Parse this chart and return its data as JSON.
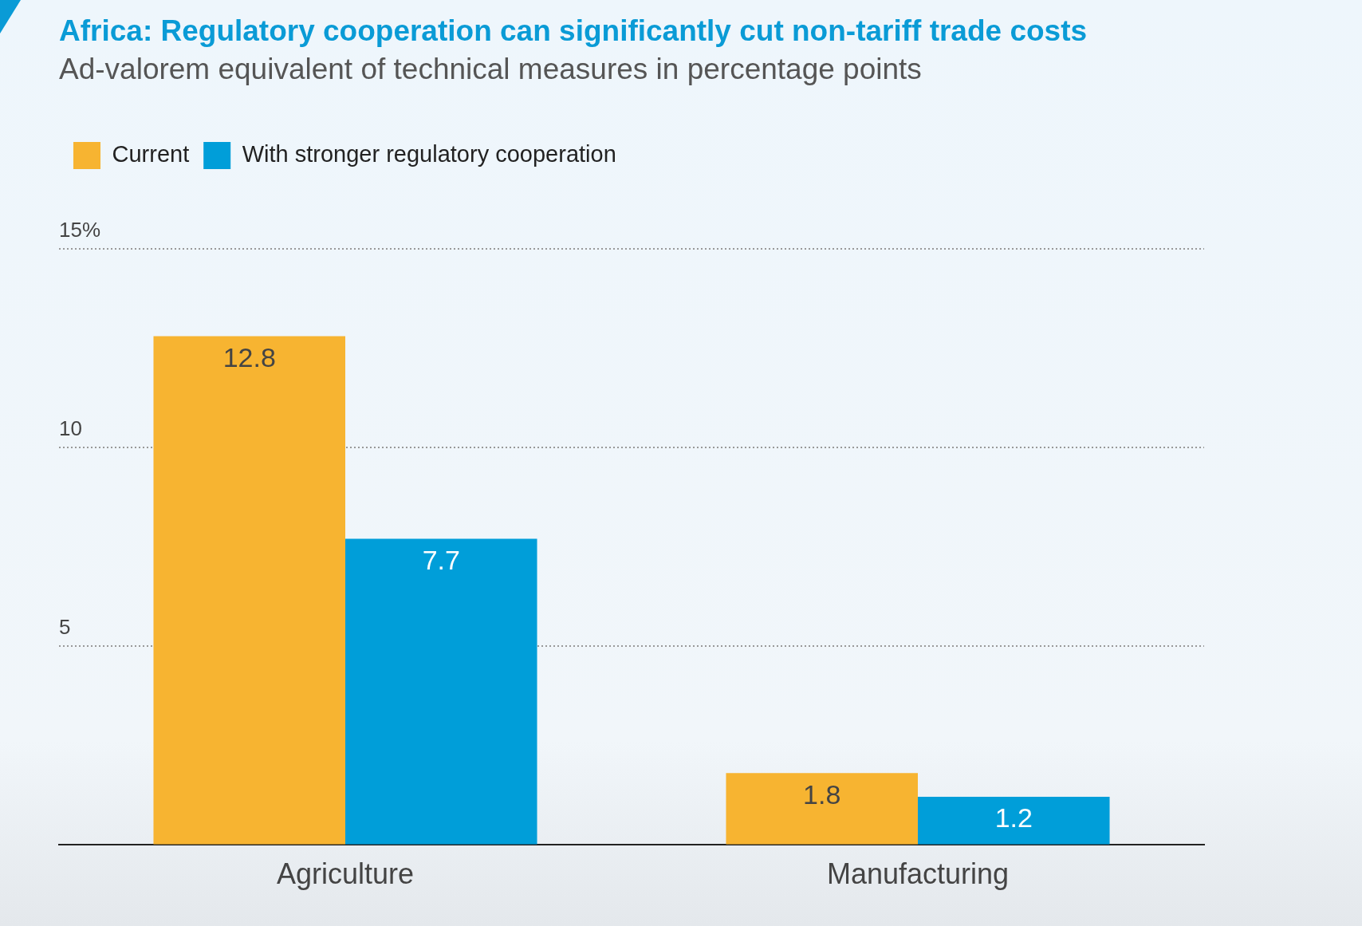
{
  "chart_data": {
    "type": "bar",
    "title": "Africa: Regulatory cooperation can significantly cut non-tariff trade costs",
    "subtitle": "Ad-valorem equivalent of technical measures in percentage points",
    "categories": [
      "Agriculture",
      "Manufacturing"
    ],
    "series": [
      {
        "name": "Current",
        "color": "#f7b431",
        "values": [
          12.8,
          1.8
        ]
      },
      {
        "name": "With stronger regulatory cooperation",
        "color": "#009ed9",
        "values": [
          7.7,
          1.2
        ]
      }
    ],
    "ylim": [
      0,
      15
    ],
    "yticks": [
      5,
      10,
      {
        "value": 15,
        "label": "15%"
      }
    ],
    "grid": "y",
    "legend": "top left",
    "data_labels": true
  }
}
